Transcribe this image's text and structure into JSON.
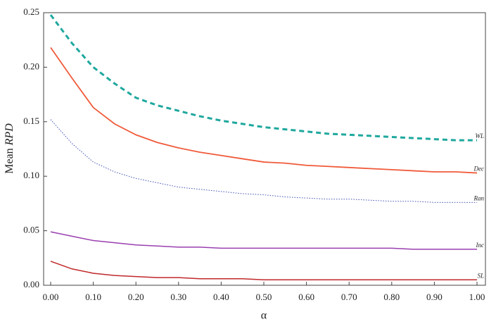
{
  "chart_data": {
    "type": "line",
    "xlabel": "α",
    "ylabel": [
      "Mean",
      "RPD"
    ],
    "x": [
      0,
      0.05,
      0.1,
      0.15,
      0.2,
      0.25,
      0.3,
      0.35,
      0.4,
      0.45,
      0.5,
      0.55,
      0.6,
      0.65,
      0.7,
      0.75,
      0.8,
      0.85,
      0.9,
      0.95,
      1.0
    ],
    "xlim": [
      -0.0165,
      1.0198
    ],
    "ylim": [
      0,
      0.25
    ],
    "xticks": [
      {
        "value": 0,
        "label": "0.00"
      },
      {
        "value": 0.1,
        "label": "0.10"
      },
      {
        "value": 0.2,
        "label": "0.20"
      },
      {
        "value": 0.3,
        "label": "0.30"
      },
      {
        "value": 0.4,
        "label": "0.40"
      },
      {
        "value": 0.5,
        "label": "0.50"
      },
      {
        "value": 0.6,
        "label": "0.60"
      },
      {
        "value": 0.7,
        "label": "0.70"
      },
      {
        "value": 0.8,
        "label": "0.80"
      },
      {
        "value": 0.9,
        "label": "0.90"
      },
      {
        "value": 1.0,
        "label": "1.00"
      }
    ],
    "yticks": [
      {
        "value": 0,
        "label": "0.00"
      },
      {
        "value": 0.05,
        "label": "0.05"
      },
      {
        "value": 0.1,
        "label": "0.10"
      },
      {
        "value": 0.15,
        "label": "0.15"
      },
      {
        "value": 0.2,
        "label": "0.20"
      },
      {
        "value": 0.25,
        "label": "0.25"
      }
    ],
    "grid": false,
    "series": [
      {
        "name": "WL",
        "color": "#1fa89e",
        "line_style": "dashed",
        "line_width": 3,
        "values": [
          0.248,
          0.222,
          0.2,
          0.185,
          0.172,
          0.165,
          0.16,
          0.155,
          0.151,
          0.148,
          0.145,
          0.143,
          0.141,
          0.139,
          0.138,
          0.137,
          0.136,
          0.135,
          0.134,
          0.133,
          0.133
        ]
      },
      {
        "name": "Dec",
        "color": "#f05a3a",
        "line_style": "solid",
        "line_width": 1.8,
        "values": [
          0.218,
          0.19,
          0.163,
          0.148,
          0.138,
          0.131,
          0.126,
          0.122,
          0.119,
          0.116,
          0.113,
          0.112,
          0.11,
          0.109,
          0.108,
          0.107,
          0.106,
          0.105,
          0.104,
          0.104,
          0.103
        ]
      },
      {
        "name": "Ran",
        "color": "#4050b0",
        "line_style": "dotted",
        "line_width": 1,
        "values": [
          0.152,
          0.13,
          0.113,
          0.104,
          0.098,
          0.094,
          0.09,
          0.088,
          0.086,
          0.084,
          0.083,
          0.081,
          0.08,
          0.079,
          0.079,
          0.078,
          0.077,
          0.077,
          0.076,
          0.076,
          0.076
        ]
      },
      {
        "name": "Inc",
        "color": "#9a3fb0",
        "line_style": "solid",
        "line_width": 1.5,
        "values": [
          0.049,
          0.045,
          0.041,
          0.039,
          0.037,
          0.036,
          0.035,
          0.035,
          0.034,
          0.034,
          0.034,
          0.034,
          0.034,
          0.034,
          0.034,
          0.034,
          0.034,
          0.033,
          0.033,
          0.033,
          0.033
        ]
      },
      {
        "name": "SL",
        "color": "#c0282a",
        "line_style": "solid",
        "line_width": 1.5,
        "values": [
          0.022,
          0.015,
          0.011,
          0.009,
          0.008,
          0.007,
          0.007,
          0.006,
          0.006,
          0.006,
          0.005,
          0.005,
          0.005,
          0.005,
          0.005,
          0.005,
          0.005,
          0.005,
          0.005,
          0.005,
          0.005
        ]
      }
    ]
  }
}
